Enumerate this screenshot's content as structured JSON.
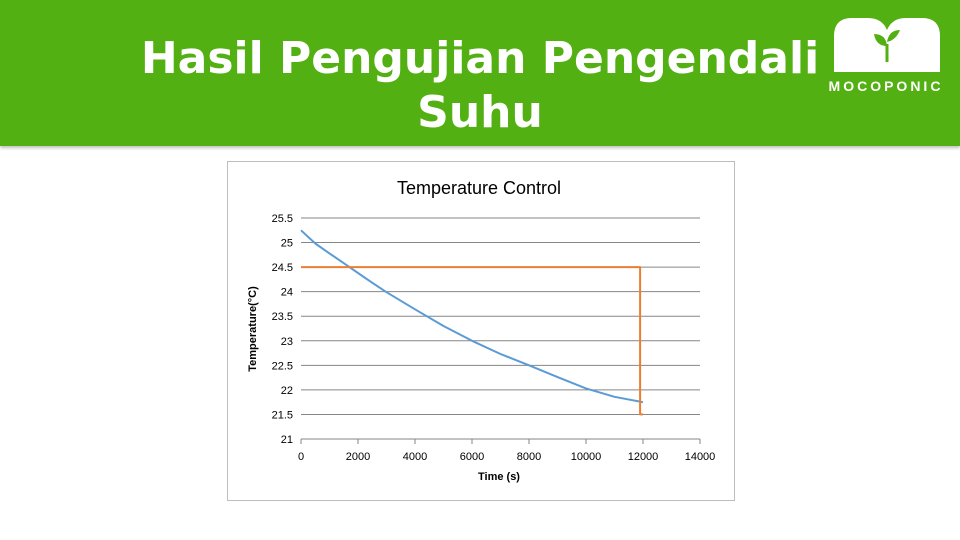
{
  "slide": {
    "title_line1": "Hasil Pengujian Pengendali",
    "title_line2": "Suhu",
    "brand": "MOCOPONIC",
    "header_color": "#52b012"
  },
  "chart_data": {
    "type": "line",
    "title": "Temperature Control",
    "xlabel": "Time (s)",
    "ylabel": "Temperature(°C)",
    "xlim": [
      0,
      14000
    ],
    "ylim": [
      21,
      25.5
    ],
    "xticks": [
      0,
      2000,
      4000,
      6000,
      8000,
      10000,
      12000,
      14000
    ],
    "yticks": [
      21,
      21.5,
      22,
      22.5,
      23,
      23.5,
      24,
      24.5,
      25,
      25.5
    ],
    "grid": "horizontal",
    "series": [
      {
        "color": "#5b9bd5",
        "x": [
          0,
          500,
          1000,
          1500,
          2000,
          2500,
          3000,
          4000,
          5000,
          6000,
          7000,
          8000,
          9000,
          10000,
          11000,
          12000
        ],
        "y": [
          25.25,
          24.98,
          24.78,
          24.58,
          24.38,
          24.18,
          23.99,
          23.64,
          23.3,
          23.0,
          22.73,
          22.5,
          22.26,
          22.03,
          21.86,
          21.75
        ]
      },
      {
        "color": "#ed7d31",
        "x": [
          0,
          11900,
          11900,
          12000
        ],
        "y": [
          24.5,
          24.5,
          21.5,
          21.5
        ]
      }
    ]
  }
}
